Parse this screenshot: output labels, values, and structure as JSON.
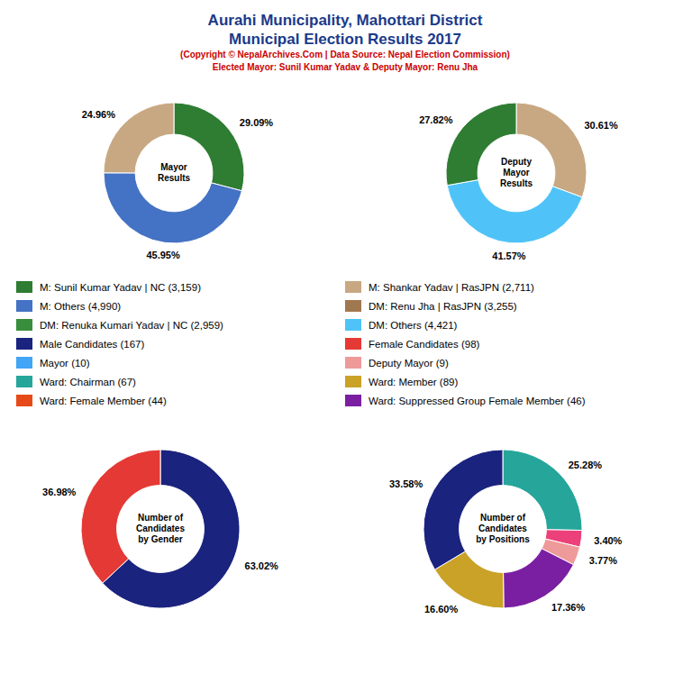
{
  "title": {
    "text": [
      "Aurahi Municipality, Mahottari District",
      "Municipal Election Results 2017"
    ],
    "color": "#1a3a8a"
  },
  "subtitle": {
    "text": [
      "(Copyright © NepalArchives.Com | Data Source: Nepal Election Commission)",
      "Elected Mayor: Sunil Kumar Yadav & Deputy Mayor: Renu Jha"
    ],
    "color": "#cc0000"
  },
  "chart_data": [
    {
      "type": "donut",
      "title": "Mayor\nResults",
      "values": [
        29.09,
        45.95,
        24.96
      ],
      "value_labels": [
        "29.09%",
        "45.95%",
        "24.96%"
      ],
      "colors": [
        "#2e7d32",
        "#4472c4",
        "#c8a882"
      ],
      "data_labels": true
    },
    {
      "type": "donut",
      "title": "Deputy\nMayor\nResults",
      "values": [
        30.61,
        41.57,
        27.82
      ],
      "value_labels": [
        "30.61%",
        "41.57%",
        "27.82%"
      ],
      "colors": [
        "#c8a882",
        "#4fc3f7",
        "#2e7d32"
      ],
      "data_labels": true
    },
    {
      "type": "donut",
      "title": "Number of\nCandidates\nby Gender",
      "values": [
        63.02,
        36.98
      ],
      "value_labels": [
        "63.02%",
        "36.98%"
      ],
      "colors": [
        "#1a237e",
        "#e53935"
      ],
      "data_labels": true
    },
    {
      "type": "donut",
      "title": "Number of\nCandidates\nby Positions",
      "values": [
        25.28,
        3.4,
        3.77,
        17.36,
        16.6,
        33.58
      ],
      "value_labels": [
        "25.28%",
        "3.40%",
        "3.77%",
        "17.36%",
        "16.60%",
        "33.58%"
      ],
      "colors": [
        "#26a69a",
        "#ec407a",
        "#ef9a9a",
        "#7b1fa2",
        "#c9a227",
        "#1a237e"
      ],
      "data_labels": true
    }
  ],
  "annotations": [
    {
      "text": "M: Sunil Kumar Yadav | NC (3,159)",
      "color": "#2e7d32"
    },
    {
      "text": "M: Others (4,990)",
      "color": "#4472c4"
    },
    {
      "text": "DM: Renuka Kumari Yadav | NC (2,959)",
      "color": "#388e3c"
    },
    {
      "text": "Male Candidates (167)",
      "color": "#1a237e"
    },
    {
      "text": "Mayor (10)",
      "color": "#42a5f5"
    },
    {
      "text": "Ward: Chairman (67)",
      "color": "#26a69a"
    },
    {
      "text": "Ward: Female Member (44)",
      "color": "#e64a19"
    },
    {
      "text": "M: Shankar Yadav | RasJPN (2,711)",
      "color": "#c8a882"
    },
    {
      "text": "DM: Renu Jha | RasJPN (3,255)",
      "color": "#a07850"
    },
    {
      "text": "DM: Others (4,421)",
      "color": "#4fc3f7"
    },
    {
      "text": "Female Candidates (98)",
      "color": "#e53935"
    },
    {
      "text": "Deputy Mayor (9)",
      "color": "#ef9a9a"
    },
    {
      "text": "Ward: Member (89)",
      "color": "#c9a227"
    },
    {
      "text": "Ward: Suppressed Group Female Member (46)",
      "color": "#7b1fa2"
    }
  ]
}
